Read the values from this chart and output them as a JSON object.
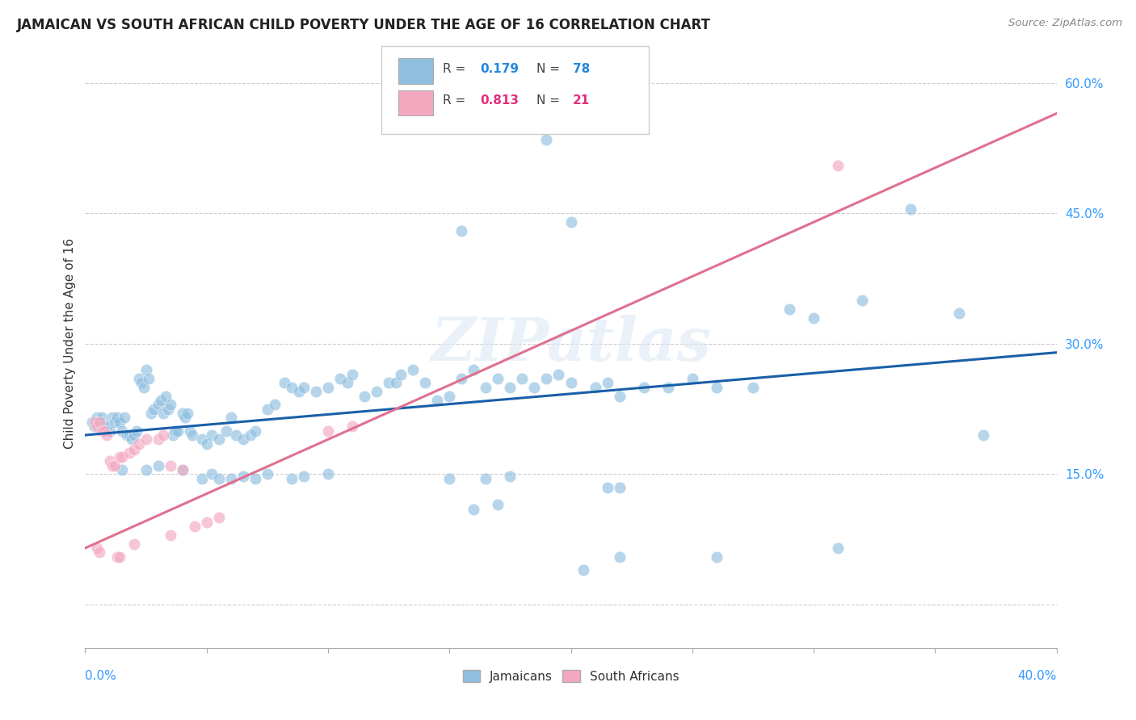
{
  "title": "JAMAICAN VS SOUTH AFRICAN CHILD POVERTY UNDER THE AGE OF 16 CORRELATION CHART",
  "source": "Source: ZipAtlas.com",
  "ylabel": "Child Poverty Under the Age of 16",
  "xlim": [
    0.0,
    0.4
  ],
  "ylim": [
    -0.05,
    0.65
  ],
  "yticks": [
    0.0,
    0.15,
    0.3,
    0.45,
    0.6
  ],
  "ytick_labels": [
    "",
    "15.0%",
    "30.0%",
    "45.0%",
    "60.0%"
  ],
  "xticks": [
    0.0,
    0.05,
    0.1,
    0.15,
    0.2,
    0.25,
    0.3,
    0.35,
    0.4
  ],
  "blue_color": "#8fbfe0",
  "pink_color": "#f4a8c0",
  "blue_line_color": "#1a5fa8",
  "pink_line_color": "#e07090",
  "axis_label_color": "#3399ff",
  "watermark": "ZIPatlas",
  "blue_points": [
    [
      0.003,
      0.21
    ],
    [
      0.004,
      0.205
    ],
    [
      0.005,
      0.215
    ],
    [
      0.006,
      0.21
    ],
    [
      0.007,
      0.215
    ],
    [
      0.008,
      0.205
    ],
    [
      0.009,
      0.205
    ],
    [
      0.01,
      0.2
    ],
    [
      0.011,
      0.215
    ],
    [
      0.012,
      0.21
    ],
    [
      0.013,
      0.215
    ],
    [
      0.014,
      0.21
    ],
    [
      0.015,
      0.2
    ],
    [
      0.016,
      0.215
    ],
    [
      0.017,
      0.195
    ],
    [
      0.018,
      0.195
    ],
    [
      0.019,
      0.19
    ],
    [
      0.02,
      0.195
    ],
    [
      0.021,
      0.2
    ],
    [
      0.022,
      0.26
    ],
    [
      0.023,
      0.255
    ],
    [
      0.024,
      0.25
    ],
    [
      0.025,
      0.27
    ],
    [
      0.026,
      0.26
    ],
    [
      0.027,
      0.22
    ],
    [
      0.028,
      0.225
    ],
    [
      0.03,
      0.23
    ],
    [
      0.031,
      0.235
    ],
    [
      0.032,
      0.22
    ],
    [
      0.033,
      0.24
    ],
    [
      0.034,
      0.225
    ],
    [
      0.035,
      0.23
    ],
    [
      0.036,
      0.195
    ],
    [
      0.037,
      0.2
    ],
    [
      0.038,
      0.2
    ],
    [
      0.04,
      0.22
    ],
    [
      0.041,
      0.215
    ],
    [
      0.042,
      0.22
    ],
    [
      0.043,
      0.2
    ],
    [
      0.044,
      0.195
    ],
    [
      0.048,
      0.19
    ],
    [
      0.05,
      0.185
    ],
    [
      0.052,
      0.195
    ],
    [
      0.055,
      0.19
    ],
    [
      0.058,
      0.2
    ],
    [
      0.06,
      0.215
    ],
    [
      0.062,
      0.195
    ],
    [
      0.065,
      0.19
    ],
    [
      0.068,
      0.195
    ],
    [
      0.07,
      0.2
    ],
    [
      0.075,
      0.225
    ],
    [
      0.078,
      0.23
    ],
    [
      0.082,
      0.255
    ],
    [
      0.085,
      0.25
    ],
    [
      0.088,
      0.245
    ],
    [
      0.09,
      0.25
    ],
    [
      0.095,
      0.245
    ],
    [
      0.1,
      0.25
    ],
    [
      0.105,
      0.26
    ],
    [
      0.108,
      0.255
    ],
    [
      0.11,
      0.265
    ],
    [
      0.115,
      0.24
    ],
    [
      0.12,
      0.245
    ],
    [
      0.125,
      0.255
    ],
    [
      0.128,
      0.255
    ],
    [
      0.13,
      0.265
    ],
    [
      0.135,
      0.27
    ],
    [
      0.14,
      0.255
    ],
    [
      0.145,
      0.235
    ],
    [
      0.15,
      0.24
    ],
    [
      0.155,
      0.26
    ],
    [
      0.16,
      0.27
    ],
    [
      0.165,
      0.25
    ],
    [
      0.17,
      0.26
    ],
    [
      0.175,
      0.25
    ],
    [
      0.18,
      0.26
    ],
    [
      0.185,
      0.25
    ],
    [
      0.19,
      0.26
    ],
    [
      0.195,
      0.265
    ],
    [
      0.2,
      0.255
    ],
    [
      0.21,
      0.25
    ],
    [
      0.215,
      0.255
    ],
    [
      0.22,
      0.24
    ],
    [
      0.23,
      0.25
    ],
    [
      0.24,
      0.25
    ],
    [
      0.25,
      0.26
    ],
    [
      0.26,
      0.25
    ],
    [
      0.275,
      0.25
    ],
    [
      0.29,
      0.34
    ],
    [
      0.3,
      0.33
    ],
    [
      0.32,
      0.35
    ],
    [
      0.34,
      0.455
    ],
    [
      0.36,
      0.335
    ],
    [
      0.19,
      0.535
    ],
    [
      0.2,
      0.44
    ],
    [
      0.155,
      0.43
    ],
    [
      0.015,
      0.155
    ],
    [
      0.025,
      0.155
    ],
    [
      0.03,
      0.16
    ],
    [
      0.04,
      0.155
    ],
    [
      0.048,
      0.145
    ],
    [
      0.052,
      0.15
    ],
    [
      0.055,
      0.145
    ],
    [
      0.06,
      0.145
    ],
    [
      0.065,
      0.148
    ],
    [
      0.07,
      0.145
    ],
    [
      0.075,
      0.15
    ],
    [
      0.085,
      0.145
    ],
    [
      0.09,
      0.148
    ],
    [
      0.1,
      0.15
    ],
    [
      0.15,
      0.145
    ],
    [
      0.165,
      0.145
    ],
    [
      0.175,
      0.148
    ],
    [
      0.16,
      0.11
    ],
    [
      0.17,
      0.115
    ],
    [
      0.215,
      0.135
    ],
    [
      0.22,
      0.135
    ],
    [
      0.26,
      0.055
    ],
    [
      0.31,
      0.065
    ],
    [
      0.22,
      0.055
    ],
    [
      0.205,
      0.04
    ],
    [
      0.37,
      0.195
    ]
  ],
  "pink_points": [
    [
      0.004,
      0.21
    ],
    [
      0.005,
      0.205
    ],
    [
      0.006,
      0.21
    ],
    [
      0.007,
      0.2
    ],
    [
      0.008,
      0.2
    ],
    [
      0.009,
      0.195
    ],
    [
      0.01,
      0.165
    ],
    [
      0.011,
      0.16
    ],
    [
      0.012,
      0.16
    ],
    [
      0.014,
      0.17
    ],
    [
      0.015,
      0.17
    ],
    [
      0.018,
      0.175
    ],
    [
      0.02,
      0.178
    ],
    [
      0.022,
      0.185
    ],
    [
      0.025,
      0.19
    ],
    [
      0.03,
      0.19
    ],
    [
      0.032,
      0.195
    ],
    [
      0.035,
      0.16
    ],
    [
      0.04,
      0.155
    ],
    [
      0.045,
      0.09
    ],
    [
      0.05,
      0.095
    ],
    [
      0.055,
      0.1
    ],
    [
      0.1,
      0.2
    ],
    [
      0.11,
      0.205
    ],
    [
      0.31,
      0.505
    ],
    [
      0.005,
      0.065
    ],
    [
      0.006,
      0.06
    ],
    [
      0.013,
      0.055
    ],
    [
      0.014,
      0.055
    ],
    [
      0.02,
      0.07
    ],
    [
      0.035,
      0.08
    ]
  ]
}
